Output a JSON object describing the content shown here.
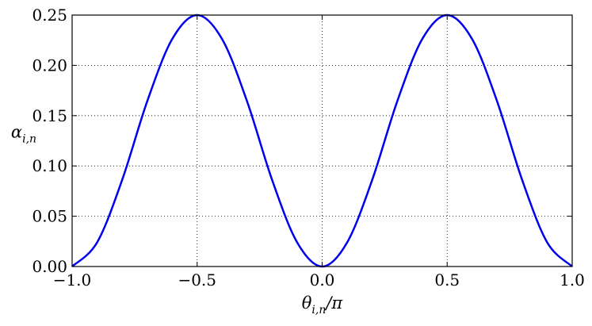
{
  "chart_data": {
    "type": "line",
    "xlabel": {
      "main": "θ",
      "sub": "i,n",
      "suffix": "/π"
    },
    "ylabel": {
      "main": "α",
      "sub": "i,n"
    },
    "xlim": [
      -1.0,
      1.0
    ],
    "ylim": [
      0.0,
      0.25
    ],
    "x_ticks": [
      -1.0,
      -0.5,
      0.0,
      0.5,
      1.0
    ],
    "x_tick_labels": [
      "−1.0",
      "−0.5",
      "0.0",
      "0.5",
      "1.0"
    ],
    "y_ticks": [
      0.0,
      0.05,
      0.1,
      0.15,
      0.2,
      0.25
    ],
    "y_tick_labels": [
      "0.00",
      "0.05",
      "0.10",
      "0.15",
      "0.20",
      "0.25"
    ],
    "grid": true,
    "series": [
      {
        "color": "#0000ee",
        "x": [
          -1.0,
          -0.9,
          -0.8,
          -0.7,
          -0.6,
          -0.5,
          -0.4,
          -0.3,
          -0.2,
          -0.1,
          0.0,
          0.1,
          0.2,
          0.3,
          0.4,
          0.5,
          0.6,
          0.7,
          0.8,
          0.9,
          1.0
        ],
        "y": [
          0.0,
          0.024,
          0.086,
          0.164,
          0.226,
          0.25,
          0.226,
          0.164,
          0.086,
          0.024,
          0.0,
          0.024,
          0.086,
          0.164,
          0.226,
          0.25,
          0.226,
          0.164,
          0.086,
          0.024,
          0.0
        ]
      }
    ]
  }
}
